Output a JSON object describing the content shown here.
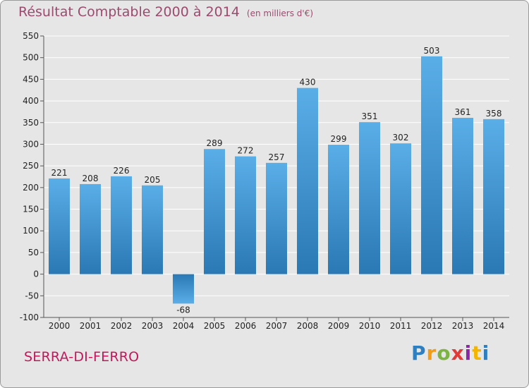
{
  "title": "Résultat Comptable 2000 à 2014",
  "title_unit": "(en milliers d'€)",
  "location": "SERRA-DI-FERRO",
  "logo_text": "Proxiti",
  "colors": {
    "background": "#e6e6e6",
    "bar_top": "#5aaee8",
    "bar_bottom": "#2a78b4",
    "title": "#9c4a6e",
    "location": "#c2185b"
  },
  "chart_data": {
    "type": "bar",
    "categories": [
      "2000",
      "2001",
      "2002",
      "2003",
      "2004",
      "2005",
      "2006",
      "2007",
      "2008",
      "2009",
      "2010",
      "2011",
      "2012",
      "2013",
      "2014"
    ],
    "values": [
      221,
      208,
      226,
      205,
      -68,
      289,
      272,
      257,
      430,
      299,
      351,
      302,
      503,
      361,
      358
    ],
    "ylim": [
      -100,
      550
    ],
    "yticks": [
      -100,
      -50,
      0,
      50,
      100,
      150,
      200,
      250,
      300,
      350,
      400,
      450,
      500,
      550
    ],
    "grid": true,
    "data_labels": true
  }
}
